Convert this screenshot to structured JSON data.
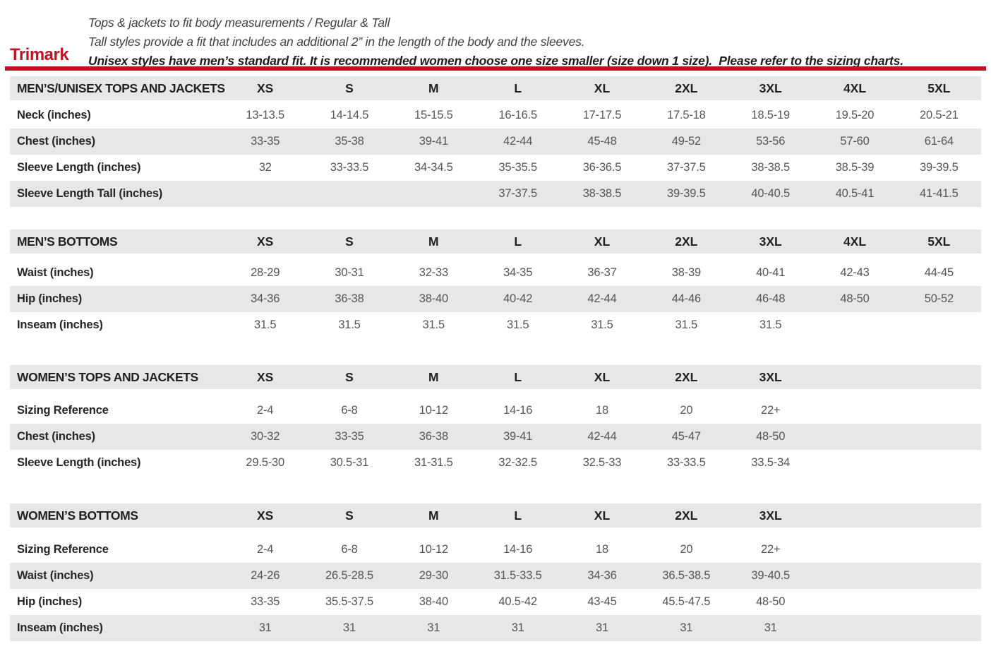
{
  "brand": "Trimark",
  "intro": {
    "line1": "Tops & jackets to fit body measurements / Regular & Tall",
    "line2": "Tall styles provide a fit that includes an additional 2” in the length of the body and the sleeves.",
    "line3": "Unisex styles have men’s standard fit. It is recommended women choose one size smaller (size down 1 size).  Please refer to the sizing charts."
  },
  "colors": {
    "brand_red": "#bc1626",
    "rule_red": "#c3111f",
    "row_gray": "#e7e7e8",
    "label_text": "#231f20",
    "value_text": "#55565a"
  },
  "tables": [
    {
      "title": "MEN’S/UNISEX TOPS AND JACKETS",
      "columns": [
        "XS",
        "S",
        "M",
        "L",
        "XL",
        "2XL",
        "3XL",
        "4XL",
        "5XL"
      ],
      "rows": [
        {
          "label": "Neck (inches)",
          "values": [
            "13-13.5",
            "14-14.5",
            "15-15.5",
            "16-16.5",
            "17-17.5",
            "17.5-18",
            "18.5-19",
            "19.5-20",
            "20.5-21"
          ]
        },
        {
          "label": "Chest (inches)",
          "values": [
            "33-35",
            "35-38",
            "39-41",
            "42-44",
            "45-48",
            "49-52",
            "53-56",
            "57-60",
            "61-64"
          ]
        },
        {
          "label": "Sleeve Length (inches)",
          "values": [
            "32",
            "33-33.5",
            "34-34.5",
            "35-35.5",
            "36-36.5",
            "37-37.5",
            "38-38.5",
            "38.5-39",
            "39-39.5"
          ]
        },
        {
          "label": "Sleeve Length Tall (inches)",
          "values": [
            "",
            "",
            "",
            "37-37.5",
            "38-38.5",
            "39-39.5",
            "40-40.5",
            "40.5-41",
            "41-41.5"
          ]
        }
      ]
    },
    {
      "title": "MEN’S BOTTOMS",
      "columns": [
        "XS",
        "S",
        "M",
        "L",
        "XL",
        "2XL",
        "3XL",
        "4XL",
        "5XL"
      ],
      "rows": [
        {
          "label": "Waist (inches)",
          "values": [
            "28-29",
            "30-31",
            "32-33",
            "34-35",
            "36-37",
            "38-39",
            "40-41",
            "42-43",
            "44-45"
          ]
        },
        {
          "label": "Hip (inches)",
          "values": [
            "34-36",
            "36-38",
            "38-40",
            "40-42",
            "42-44",
            "44-46",
            "46-48",
            "48-50",
            "50-52"
          ]
        },
        {
          "label": "Inseam (inches)",
          "values": [
            "31.5",
            "31.5",
            "31.5",
            "31.5",
            "31.5",
            "31.5",
            "31.5",
            "",
            ""
          ]
        }
      ]
    },
    {
      "title": "WOMEN’S TOPS AND JACKETS",
      "columns": [
        "XS",
        "S",
        "M",
        "L",
        "XL",
        "2XL",
        "3XL"
      ],
      "rows": [
        {
          "label": "Sizing Reference",
          "values": [
            "2-4",
            "6-8",
            "10-12",
            "14-16",
            "18",
            "20",
            "22+"
          ]
        },
        {
          "label": "Chest (inches)",
          "values": [
            "30-32",
            "33-35",
            "36-38",
            "39-41",
            "42-44",
            "45-47",
            "48-50"
          ]
        },
        {
          "label": "Sleeve Length (inches)",
          "values": [
            "29.5-30",
            "30.5-31",
            "31-31.5",
            "32-32.5",
            "32.5-33",
            "33-33.5",
            "33.5-34"
          ]
        }
      ]
    },
    {
      "title": "WOMEN’S BOTTOMS",
      "columns": [
        "XS",
        "S",
        "M",
        "L",
        "XL",
        "2XL",
        "3XL"
      ],
      "rows": [
        {
          "label": "Sizing Reference",
          "values": [
            "2-4",
            "6-8",
            "10-12",
            "14-16",
            "18",
            "20",
            "22+"
          ]
        },
        {
          "label": "Waist (inches)",
          "values": [
            "24-26",
            "26.5-28.5",
            "29-30",
            "31.5-33.5",
            "34-36",
            "36.5-38.5",
            "39-40.5"
          ]
        },
        {
          "label": "Hip (inches)",
          "values": [
            "33-35",
            "35.5-37.5",
            "38-40",
            "40.5-42",
            "43-45",
            "45.5-47.5",
            "48-50"
          ]
        },
        {
          "label": "Inseam (inches)",
          "values": [
            "31",
            "31",
            "31",
            "31",
            "31",
            "31",
            "31"
          ]
        }
      ]
    }
  ]
}
